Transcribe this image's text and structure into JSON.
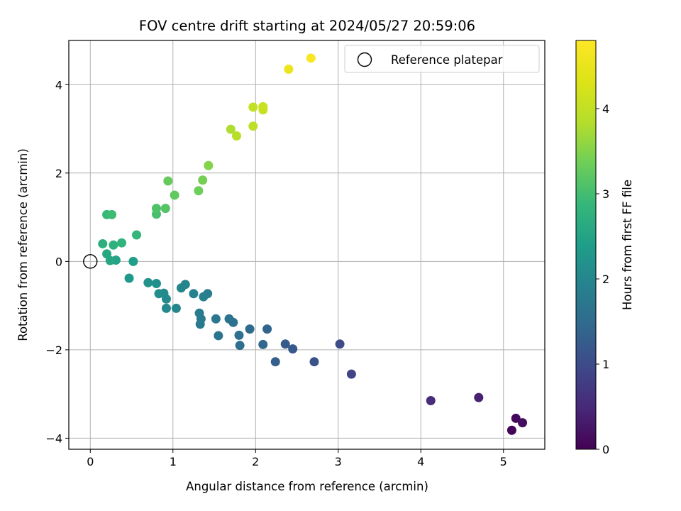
{
  "chart_data": {
    "type": "scatter",
    "title": "FOV centre drift starting at 2024/05/27 20:59:06",
    "xlabel": "Angular distance from reference (arcmin)",
    "ylabel": "Rotation from reference (arcmin)",
    "xlim": [
      -0.26,
      5.5
    ],
    "ylim": [
      -4.25,
      5.0
    ],
    "xticks": [
      0,
      1,
      2,
      3,
      4,
      5
    ],
    "yticks": [
      -4,
      -2,
      0,
      2,
      4
    ],
    "xtick_labels": [
      "0",
      "1",
      "2",
      "3",
      "4",
      "5"
    ],
    "ytick_labels": [
      "−4",
      "−2",
      "0",
      "2",
      "4"
    ],
    "grid": true,
    "legend": {
      "placement": "top-right",
      "entries": [
        "Reference platepar"
      ]
    },
    "reference_point": {
      "name": "Reference platepar",
      "x": 0,
      "y": 0
    },
    "colorbar": {
      "label": "Hours from first FF file",
      "colormap": "viridis",
      "range": [
        0,
        4.8
      ],
      "ticks": [
        0,
        1,
        2,
        3,
        4
      ],
      "tick_labels": [
        "0",
        "1",
        "2",
        "3",
        "4"
      ]
    },
    "series": [
      {
        "points": [
          {
            "x": 5.1,
            "y": -3.82,
            "c": 0.05
          },
          {
            "x": 5.15,
            "y": -3.55,
            "c": 0.1
          },
          {
            "x": 5.23,
            "y": -3.65,
            "c": 0.15
          },
          {
            "x": 4.7,
            "y": -3.08,
            "c": 0.4
          },
          {
            "x": 4.12,
            "y": -3.15,
            "c": 0.55
          },
          {
            "x": 3.16,
            "y": -2.55,
            "c": 0.9
          },
          {
            "x": 3.02,
            "y": -1.87,
            "c": 1.0
          },
          {
            "x": 2.71,
            "y": -2.27,
            "c": 1.1
          },
          {
            "x": 2.45,
            "y": -1.98,
            "c": 1.2
          },
          {
            "x": 2.36,
            "y": -1.87,
            "c": 1.25
          },
          {
            "x": 2.24,
            "y": -2.27,
            "c": 1.3
          },
          {
            "x": 2.14,
            "y": -1.53,
            "c": 1.4
          },
          {
            "x": 2.09,
            "y": -1.88,
            "c": 1.42
          },
          {
            "x": 1.93,
            "y": -1.53,
            "c": 1.5
          },
          {
            "x": 1.81,
            "y": -1.9,
            "c": 1.55
          },
          {
            "x": 1.8,
            "y": -1.67,
            "c": 1.58
          },
          {
            "x": 1.73,
            "y": -1.38,
            "c": 1.62
          },
          {
            "x": 1.68,
            "y": -1.3,
            "c": 1.65
          },
          {
            "x": 1.55,
            "y": -1.68,
            "c": 1.68
          },
          {
            "x": 1.52,
            "y": -1.3,
            "c": 1.72
          },
          {
            "x": 1.33,
            "y": -1.42,
            "c": 1.75
          },
          {
            "x": 1.34,
            "y": -1.3,
            "c": 1.78
          },
          {
            "x": 1.32,
            "y": -1.17,
            "c": 1.8
          },
          {
            "x": 1.42,
            "y": -0.73,
            "c": 1.85
          },
          {
            "x": 1.37,
            "y": -0.8,
            "c": 1.88
          },
          {
            "x": 1.25,
            "y": -0.73,
            "c": 1.92
          },
          {
            "x": 1.15,
            "y": -0.52,
            "c": 1.95
          },
          {
            "x": 1.1,
            "y": -0.6,
            "c": 1.97
          },
          {
            "x": 1.04,
            "y": -1.06,
            "c": 2.0
          },
          {
            "x": 0.92,
            "y": -1.06,
            "c": 2.02
          },
          {
            "x": 0.92,
            "y": -0.85,
            "c": 2.05
          },
          {
            "x": 0.89,
            "y": -0.72,
            "c": 2.08
          },
          {
            "x": 0.83,
            "y": -0.73,
            "c": 2.1
          },
          {
            "x": 0.8,
            "y": -0.5,
            "c": 2.15
          },
          {
            "x": 0.7,
            "y": -0.48,
            "c": 2.2
          },
          {
            "x": 0.47,
            "y": -0.38,
            "c": 2.3
          },
          {
            "x": 0.52,
            "y": 0.0,
            "c": 2.4
          },
          {
            "x": 0.31,
            "y": 0.03,
            "c": 2.5
          },
          {
            "x": 0.24,
            "y": 0.02,
            "c": 2.55
          },
          {
            "x": 0.2,
            "y": 0.17,
            "c": 2.6
          },
          {
            "x": 0.15,
            "y": 0.4,
            "c": 2.7
          },
          {
            "x": 0.28,
            "y": 0.37,
            "c": 2.75
          },
          {
            "x": 0.38,
            "y": 0.42,
            "c": 2.8
          },
          {
            "x": 0.56,
            "y": 0.6,
            "c": 2.85
          },
          {
            "x": 0.2,
            "y": 1.06,
            "c": 2.9
          },
          {
            "x": 0.26,
            "y": 1.06,
            "c": 2.95
          },
          {
            "x": 0.8,
            "y": 1.07,
            "c": 3.05
          },
          {
            "x": 0.8,
            "y": 1.2,
            "c": 3.1
          },
          {
            "x": 0.91,
            "y": 1.2,
            "c": 3.15
          },
          {
            "x": 1.02,
            "y": 1.5,
            "c": 3.25
          },
          {
            "x": 0.94,
            "y": 1.82,
            "c": 3.3
          },
          {
            "x": 1.31,
            "y": 1.6,
            "c": 3.35
          },
          {
            "x": 1.36,
            "y": 1.84,
            "c": 3.4
          },
          {
            "x": 1.43,
            "y": 2.17,
            "c": 3.5
          },
          {
            "x": 1.7,
            "y": 2.99,
            "c": 3.8
          },
          {
            "x": 1.77,
            "y": 2.84,
            "c": 3.85
          },
          {
            "x": 1.97,
            "y": 3.06,
            "c": 3.95
          },
          {
            "x": 1.97,
            "y": 3.49,
            "c": 4.0
          },
          {
            "x": 2.09,
            "y": 3.43,
            "c": 4.05
          },
          {
            "x": 2.09,
            "y": 3.5,
            "c": 4.08
          },
          {
            "x": 2.4,
            "y": 4.35,
            "c": 4.55
          },
          {
            "x": 2.67,
            "y": 4.6,
            "c": 4.75
          }
        ]
      }
    ]
  }
}
